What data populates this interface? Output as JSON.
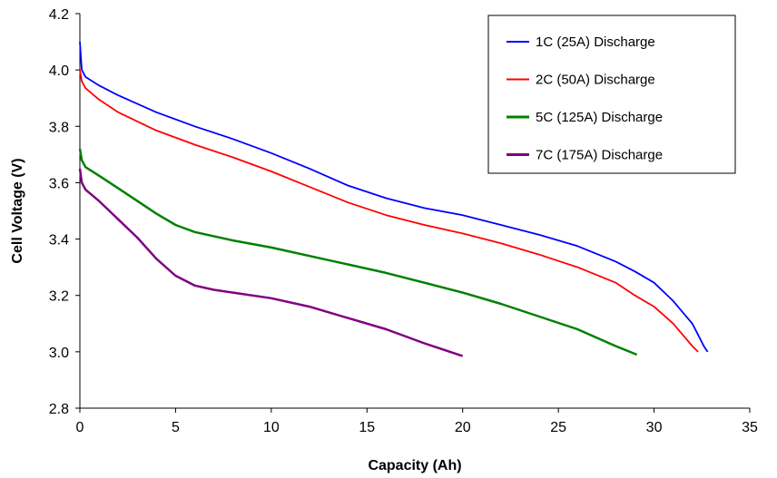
{
  "chart_data": {
    "type": "line",
    "title": "",
    "xlabel": "Capacity (Ah)",
    "ylabel": "Cell Voltage (V)",
    "xlim": [
      0,
      35
    ],
    "ylim": [
      2.8,
      4.2
    ],
    "x_ticks": [
      "0",
      "5",
      "10",
      "15",
      "20",
      "25",
      "30",
      "35"
    ],
    "y_ticks": [
      "2.8",
      "3.0",
      "3.2",
      "3.4",
      "3.6",
      "3.8",
      "4.0",
      "4.2"
    ],
    "grid": false,
    "legend_position": "top-right",
    "series": [
      {
        "name": "1C (25A) Discharge",
        "color": "#0000ff",
        "x": [
          0,
          0.1,
          0.3,
          1,
          2,
          4,
          6,
          8,
          10,
          12,
          14,
          16,
          18,
          20,
          22,
          24,
          26,
          28,
          29,
          30,
          31,
          31.5,
          32,
          32.3,
          32.6,
          32.8
        ],
        "y": [
          4.1,
          4.0,
          3.975,
          3.945,
          3.91,
          3.85,
          3.8,
          3.755,
          3.705,
          3.65,
          3.59,
          3.545,
          3.51,
          3.485,
          3.45,
          3.415,
          3.375,
          3.32,
          3.285,
          3.245,
          3.18,
          3.14,
          3.1,
          3.06,
          3.02,
          3.0
        ]
      },
      {
        "name": "2C (50A) Discharge",
        "color": "#ff0000",
        "x": [
          0,
          0.1,
          0.3,
          1,
          2,
          4,
          6,
          8,
          10,
          12,
          14,
          16,
          18,
          20,
          22,
          24,
          26,
          28,
          29,
          30,
          31,
          31.5,
          32,
          32.3
        ],
        "y": [
          4.0,
          3.96,
          3.935,
          3.895,
          3.85,
          3.785,
          3.735,
          3.69,
          3.64,
          3.585,
          3.53,
          3.485,
          3.45,
          3.42,
          3.385,
          3.345,
          3.3,
          3.245,
          3.2,
          3.16,
          3.1,
          3.06,
          3.02,
          3.0
        ]
      },
      {
        "name": "5C (125A) Discharge",
        "color": "#008000",
        "x": [
          0,
          0.1,
          0.3,
          1,
          2,
          3,
          4,
          5,
          6,
          8,
          10,
          12,
          14,
          16,
          18,
          20,
          22,
          24,
          26,
          28,
          29.1
        ],
        "y": [
          3.72,
          3.68,
          3.655,
          3.625,
          3.58,
          3.535,
          3.49,
          3.45,
          3.425,
          3.395,
          3.37,
          3.34,
          3.31,
          3.28,
          3.245,
          3.21,
          3.17,
          3.125,
          3.08,
          3.02,
          2.99
        ]
      },
      {
        "name": "7C (175A) Discharge",
        "color": "#800080",
        "x": [
          0,
          0.1,
          0.3,
          1,
          2,
          3,
          4,
          5,
          6,
          7,
          8,
          10,
          12,
          14,
          16,
          18,
          20
        ],
        "y": [
          3.65,
          3.6,
          3.575,
          3.535,
          3.47,
          3.405,
          3.33,
          3.27,
          3.235,
          3.22,
          3.21,
          3.19,
          3.16,
          3.12,
          3.08,
          3.03,
          2.985
        ]
      }
    ]
  }
}
